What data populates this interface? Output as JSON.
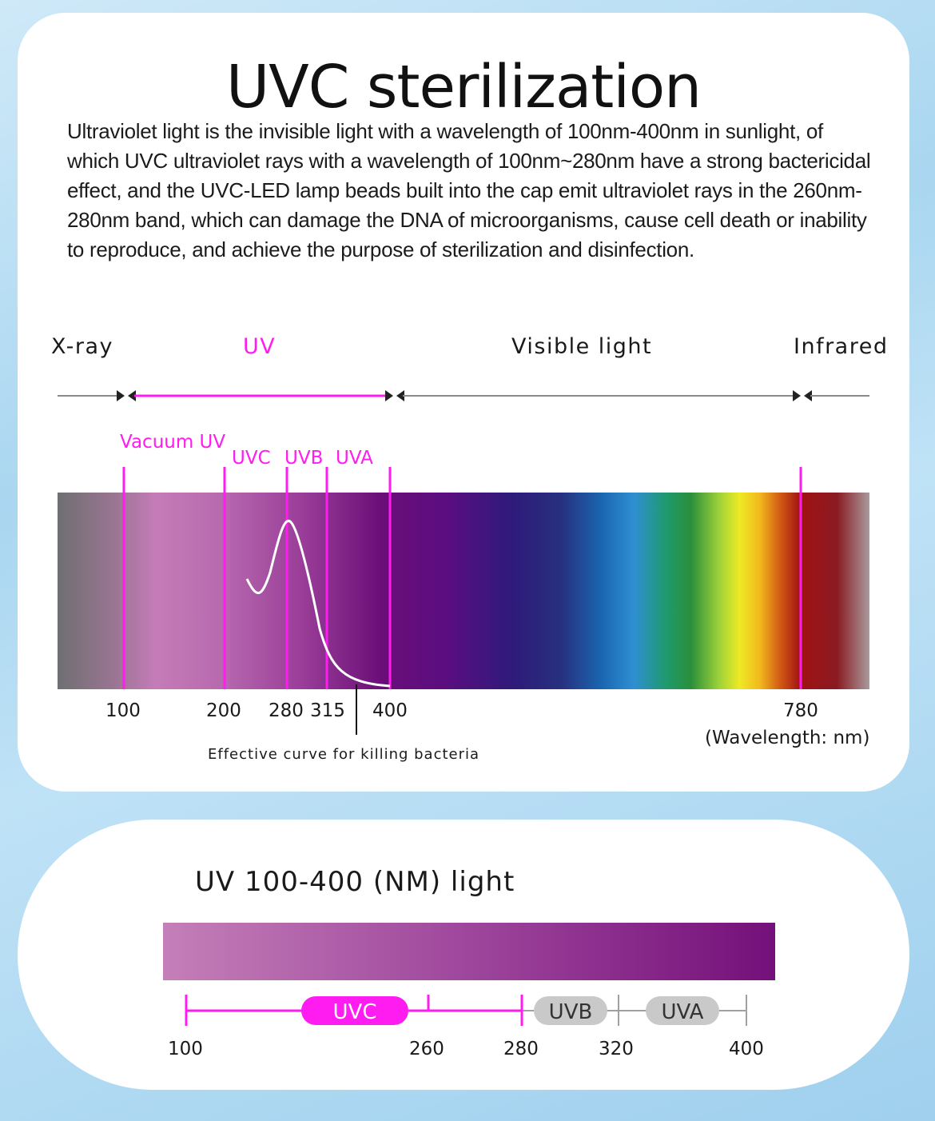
{
  "title": "UVC sterilization",
  "intro": "Ultraviolet light is the invisible light with a wavelength of 100nm-400nm in sunlight, of which UVC ultraviolet rays with a wavelength of 100nm~280nm have a strong bactericidal effect, and the UVC-LED lamp beads built into the cap emit ultraviolet rays in the 260nm-280nm band, which can damage the DNA of microorganisms, cause cell death or inability to reproduce, and achieve the purpose of sterilization and disinfection.",
  "spectrum": {
    "bands": {
      "xray": "X-ray",
      "uv": "UV",
      "visible": "Visible  light",
      "infrared": "Infrared"
    },
    "sub_bands": {
      "vacuum_uv": "Vacuum UV",
      "uvc": "UVC",
      "uvb": "UVB",
      "uva": "UVA"
    },
    "ticks": [
      "100",
      "200",
      "280",
      "315",
      "400",
      "780"
    ],
    "unit_label": "(Wavelength: nm)",
    "curve_label": "Effective curve for killing bacteria",
    "colors": {
      "uv_marker": "#ff1cf0",
      "axis_line": "#8a8a8a"
    }
  },
  "uv_range": {
    "title": "UV  100-400 (NM) light",
    "pills": {
      "uvc": "UVC",
      "uvb": "UVB",
      "uva": "UVA"
    },
    "ticks": [
      "100",
      "260",
      "280",
      "320",
      "400"
    ],
    "colors": {
      "uvc_pill": "#ff1cf0",
      "other_pill": "#c9c9c9",
      "bar_start": "#c47fb8",
      "bar_end": "#74107a"
    }
  }
}
